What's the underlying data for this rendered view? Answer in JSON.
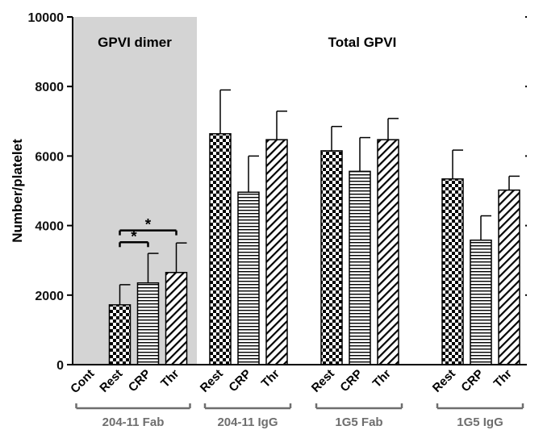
{
  "chart_data": {
    "type": "bar",
    "title": "",
    "xlabel": "",
    "ylabel": "Number/platelet",
    "ylim": [
      0,
      10000
    ],
    "yticks": [
      0,
      2000,
      4000,
      6000,
      8000,
      10000
    ],
    "ytick_labels": [
      "0",
      "2000",
      "4000",
      "6000",
      "8000",
      "10000"
    ],
    "grid": false,
    "panel_titles": [
      {
        "label": "GPVI dimer",
        "shaded": true,
        "shade_color": "#d4d4d4"
      },
      {
        "label": "Total GPVI",
        "shaded": false
      }
    ],
    "groups": [
      {
        "label": "204-11 Fab",
        "bars": [
          {
            "category": "Cont",
            "value": 0,
            "error": 0,
            "pattern": "none"
          },
          {
            "category": "Rest",
            "value": 1720,
            "error": 580,
            "pattern": "checker"
          },
          {
            "category": "CRP",
            "value": 2350,
            "error": 850,
            "pattern": "horizontal"
          },
          {
            "category": "Thr",
            "value": 2650,
            "error": 850,
            "pattern": "diagonal"
          }
        ]
      },
      {
        "label": "204-11 IgG",
        "bars": [
          {
            "category": "Rest",
            "value": 6640,
            "error": 1260,
            "pattern": "checker"
          },
          {
            "category": "CRP",
            "value": 4960,
            "error": 1040,
            "pattern": "horizontal"
          },
          {
            "category": "Thr",
            "value": 6470,
            "error": 820,
            "pattern": "diagonal"
          }
        ]
      },
      {
        "label": "1G5 Fab",
        "bars": [
          {
            "category": "Rest",
            "value": 6150,
            "error": 700,
            "pattern": "checker"
          },
          {
            "category": "CRP",
            "value": 5560,
            "error": 970,
            "pattern": "horizontal"
          },
          {
            "category": "Thr",
            "value": 6470,
            "error": 610,
            "pattern": "diagonal"
          }
        ]
      },
      {
        "label": "1G5 IgG",
        "bars": [
          {
            "category": "Rest",
            "value": 5340,
            "error": 830,
            "pattern": "checker"
          },
          {
            "category": "CRP",
            "value": 3580,
            "error": 700,
            "pattern": "horizontal"
          },
          {
            "category": "Thr",
            "value": 5020,
            "error": 400,
            "pattern": "diagonal"
          }
        ]
      }
    ],
    "significance": [
      {
        "group": 0,
        "from": "Rest",
        "to": "CRP",
        "label": "*",
        "y": 3520
      },
      {
        "group": 0,
        "from": "Rest",
        "to": "Thr",
        "label": "*",
        "y": 3860
      }
    ],
    "colors": {
      "bar_fill": "#000000",
      "bar_background": "#ffffff",
      "axis": "#000000",
      "group_bracket": "#6e6e6e"
    }
  }
}
